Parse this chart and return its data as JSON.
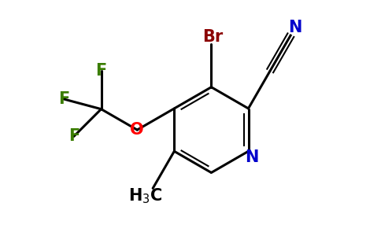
{
  "background_color": "#ffffff",
  "bond_color": "#000000",
  "atom_colors": {
    "Br": "#8b0000",
    "N_ring": "#0000cc",
    "N_cyano": "#0000cc",
    "O": "#ff0000",
    "F": "#3a7d00",
    "C": "#000000",
    "H": "#000000"
  },
  "figsize": [
    4.84,
    3.0
  ],
  "dpi": 100
}
